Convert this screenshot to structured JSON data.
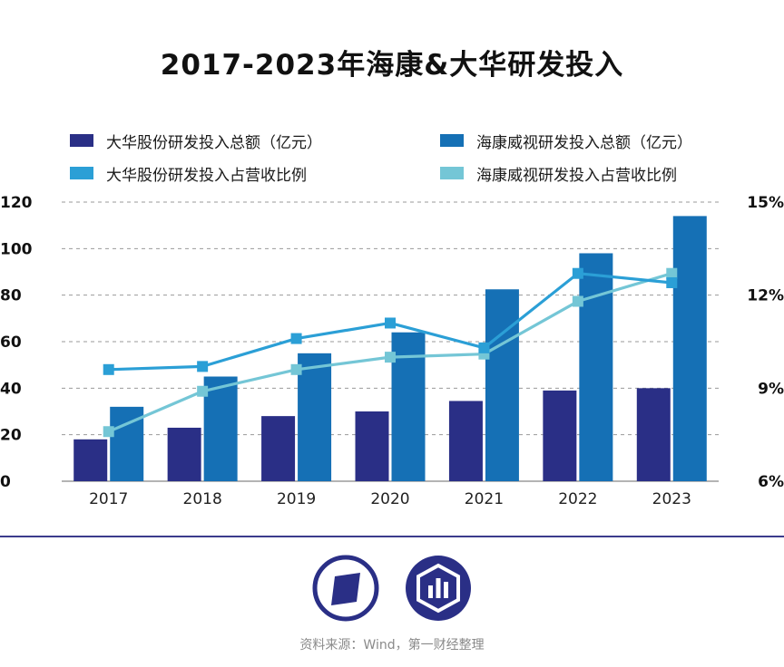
{
  "title": "2017-2023年海康&大华研发投入",
  "legend": [
    {
      "key": "dahua_amount",
      "label": "大华股份研发投入总额（亿元）",
      "color": "#2a2f86",
      "shape": "bar"
    },
    {
      "key": "hik_amount",
      "label": "海康威视研发投入总额（亿元）",
      "color": "#1570b5",
      "shape": "bar"
    },
    {
      "key": "dahua_ratio",
      "label": "大华股份研发投入占营收比例",
      "color": "#2b9fd6",
      "shape": "line"
    },
    {
      "key": "hik_ratio",
      "label": "海康威视研发投入占营收比例",
      "color": "#74c6d6",
      "shape": "line"
    }
  ],
  "chart_data": {
    "type": "bar",
    "categories": [
      "2017",
      "2018",
      "2019",
      "2020",
      "2021",
      "2022",
      "2023"
    ],
    "series": [
      {
        "name": "大华股份研发投入总额（亿元）",
        "type": "bar",
        "axis": "left",
        "color": "#2a2f86",
        "values": [
          18,
          23,
          28,
          30,
          34.5,
          39,
          40
        ]
      },
      {
        "name": "海康威视研发投入总额（亿元）",
        "type": "bar",
        "axis": "left",
        "color": "#1570b5",
        "values": [
          32,
          45,
          55,
          64,
          82.5,
          98,
          114
        ]
      },
      {
        "name": "大华股份研发投入占营收比例",
        "type": "line",
        "axis": "right",
        "color": "#2b9fd6",
        "values": [
          9.6,
          9.7,
          10.6,
          11.1,
          10.3,
          12.7,
          12.4
        ]
      },
      {
        "name": "海康威视研发投入占营收比例",
        "type": "line",
        "axis": "right",
        "color": "#74c6d6",
        "values": [
          7.6,
          8.9,
          9.6,
          10.0,
          10.1,
          11.8,
          12.7
        ]
      }
    ],
    "y_left": {
      "ticks": [
        "0",
        "20",
        "40",
        "60",
        "80",
        "100",
        "120"
      ],
      "range": [
        0,
        120
      ]
    },
    "y_right": {
      "ticks": [
        "6%",
        "9%",
        "12%",
        "15%"
      ],
      "range": [
        6,
        15
      ]
    },
    "grid": "dashed horizontal"
  },
  "logos": [
    {
      "name": "yicai-logo",
      "color": "#2a2f86"
    },
    {
      "name": "chart-logo",
      "color": "#2a2f86"
    }
  ],
  "source": "资料来源：Wind，第一财经整理"
}
